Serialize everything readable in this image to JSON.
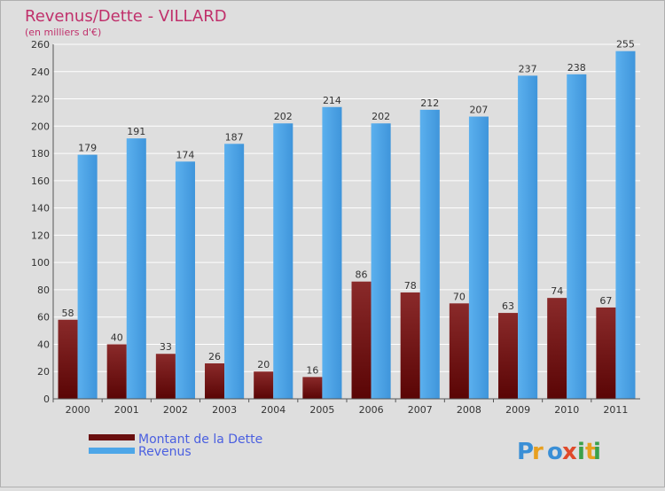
{
  "chart_data": {
    "type": "bar",
    "title": "Revenus/Dette - VILLARD",
    "subtitle": "(en milliers d'€)",
    "categories": [
      "2000",
      "2001",
      "2002",
      "2003",
      "2004",
      "2005",
      "2006",
      "2007",
      "2008",
      "2009",
      "2010",
      "2011"
    ],
    "series": [
      {
        "name": "Montant de la Dette",
        "color": "#7a1a1a",
        "values": [
          58,
          40,
          33,
          26,
          20,
          16,
          86,
          78,
          70,
          63,
          74,
          67
        ]
      },
      {
        "name": "Revenus",
        "color": "#4da6e8",
        "values": [
          179,
          191,
          174,
          187,
          202,
          214,
          202,
          212,
          207,
          237,
          238,
          255
        ]
      }
    ],
    "ylim": [
      0,
      260
    ],
    "yticks": [
      0,
      20,
      40,
      60,
      80,
      100,
      120,
      140,
      160,
      180,
      200,
      220,
      240,
      260
    ],
    "grid": true,
    "legend": "bottom-left",
    "title_color": "#c0306b",
    "legend_text_color": "#4a5fe0"
  },
  "brand": {
    "letters": [
      "P",
      "r",
      "o",
      "x",
      "i",
      "t",
      "i"
    ],
    "colors": [
      "#3a8fd6",
      "#e8a020",
      "#3a8fd6",
      "#e04a2a",
      "#3aa04a",
      "#e8a020",
      "#3aa04a"
    ]
  }
}
